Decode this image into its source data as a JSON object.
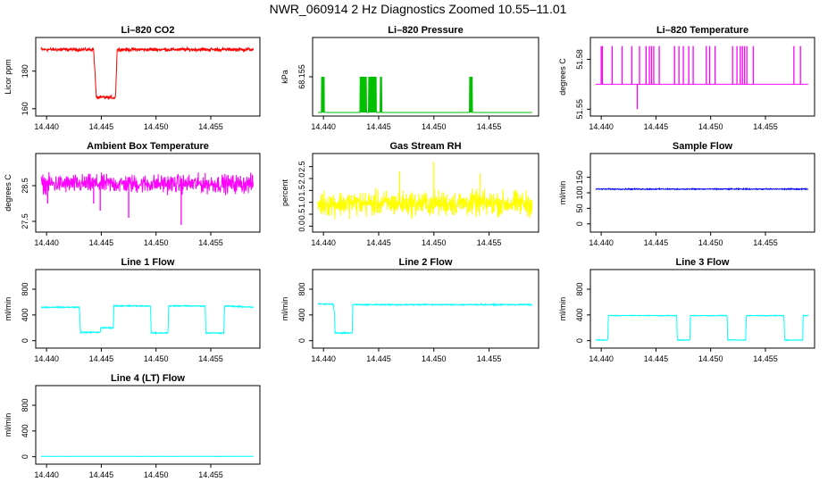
{
  "figure_title": "NWR_060914  2 Hz Diagnostics Zoomed 10.55–11.01",
  "x_axis": {
    "min": 14.4395,
    "max": 14.459,
    "ticks": [
      14.44,
      14.445,
      14.45,
      14.455
    ],
    "tick_labels": [
      "14.440",
      "14.445",
      "14.450",
      "14.455"
    ]
  },
  "chart_data": [
    {
      "type": "line",
      "title": "Li–820 CO2",
      "ylabel": "Licor ppm",
      "color": "#ff0000",
      "ylim": [
        158,
        196
      ],
      "yticks": [
        160,
        180
      ],
      "ytick_labels": [
        "160",
        "180"
      ],
      "series": [
        {
          "name": "CO2",
          "signal": "co2",
          "segments": [
            [
              14.4395,
              191.5
            ],
            [
              14.4443,
              191.5
            ],
            [
              14.44455,
              166
            ],
            [
              14.4463,
              166
            ],
            [
              14.44645,
              191.5
            ],
            [
              14.4589,
              191.5
            ]
          ],
          "noise": 0.8
        }
      ]
    },
    {
      "type": "line",
      "title": "Li–820 Pressure",
      "ylabel": "kPa",
      "color": "#00c000",
      "ylim": [
        68.1585,
        68.1515
      ],
      "yticks": [
        68.165,
        68.16,
        68.155
      ],
      "ytick_labels": [
        "68.165",
        "68.160",
        "68.155"
      ],
      "series": [
        {
          "name": "Pressure",
          "signal": "steps",
          "base": 68.16,
          "levels": [
            68.155,
            68.16,
            68.165
          ],
          "bursts": [
            [
              14.4398,
              14.4401,
              68.155
            ],
            [
              14.4433,
              14.4439,
              68.155
            ],
            [
              14.4441,
              14.4448,
              68.155
            ],
            [
              14.4451,
              14.4453,
              68.155
            ],
            [
              14.4535,
              14.4544,
              68.165
            ],
            [
              14.4568,
              14.4578,
              68.165
            ],
            [
              14.4581,
              14.4586,
              68.165
            ]
          ],
          "shift": [
            [
              14.4532,
              14.4581,
              68.16
            ],
            [
              14.4581,
              14.4589,
              68.165
            ]
          ]
        }
      ]
    },
    {
      "type": "line",
      "title": "Li–820 Temperature",
      "ylabel": "degrees C",
      "color": "#ff00ff",
      "ylim": [
        51.548,
        51.591
      ],
      "yticks": [
        51.55,
        51.58
      ],
      "ytick_labels": [
        "51.55",
        "51.58"
      ],
      "series": [
        {
          "name": "Temperature",
          "signal": "spikes",
          "base": 51.565,
          "up": 51.588,
          "down": 51.55,
          "spike_x": [
            14.44,
            14.4401,
            14.441,
            14.4419,
            14.4428,
            14.4435,
            14.4441,
            14.4444,
            14.4446,
            14.4448,
            14.4453,
            14.4467,
            14.4471,
            14.4475,
            14.448,
            14.4484,
            14.4496,
            14.4499,
            14.4504,
            14.452,
            14.4524,
            14.4527,
            14.4529,
            14.4531,
            14.4533,
            14.4539,
            14.4576,
            14.4582
          ],
          "down_x": [
            14.4433
          ]
        }
      ]
    },
    {
      "type": "line",
      "title": "Ambient Box Temperature",
      "ylabel": "degrees C",
      "color": "#ff00ff",
      "ylim": [
        27.3,
        29.3
      ],
      "yticks": [
        27.5,
        28.5
      ],
      "ytick_labels": [
        "27.5",
        "28.5"
      ],
      "series": [
        {
          "name": "Ambient",
          "signal": "noise",
          "base": 28.55,
          "noise": 0.22,
          "dips": [
            [
              14.4475,
              27.6
            ],
            [
              14.4449,
              27.8
            ],
            [
              14.4523,
              27.4
            ],
            [
              14.4443,
              28.0
            ],
            [
              14.4401,
              28.0
            ]
          ]
        }
      ]
    },
    {
      "type": "line",
      "title": "Gas Stream RH",
      "ylabel": "percent",
      "color": "#ffff00",
      "ylim": [
        -0.1,
        2.9
      ],
      "yticks": [
        0.0,
        0.5,
        1.0,
        1.5,
        2.0,
        2.5
      ],
      "ytick_labels": [
        "0.0",
        "0.5",
        "1.0",
        "1.5",
        "2.0",
        "2.5"
      ],
      "series": [
        {
          "name": "RH",
          "signal": "noise",
          "base": 0.95,
          "noise": 0.45,
          "dips": [
            [
              14.45,
              2.7
            ],
            [
              14.4542,
              2.2
            ],
            [
              14.4469,
              2.3
            ]
          ]
        }
      ]
    },
    {
      "type": "line",
      "title": "Sample Flow",
      "ylabel": "ml/min",
      "color": "#0000ff",
      "ylim": [
        -15,
        215
      ],
      "yticks": [
        0,
        50,
        100,
        150
      ],
      "ytick_labels": [
        "0",
        "50",
        "100",
        "150"
      ],
      "series": [
        {
          "name": "Sample",
          "signal": "noise",
          "base": 112,
          "noise": 1.5,
          "dips": []
        }
      ]
    },
    {
      "type": "line",
      "title": "Line 1 Flow",
      "ylabel": "ml/min",
      "color": "#00ffff",
      "ylim": [
        -60,
        1050
      ],
      "yticks": [
        0,
        400,
        800
      ],
      "ytick_labels": [
        "0",
        "400",
        "800"
      ],
      "series": [
        {
          "name": "Line1",
          "signal": "steps2",
          "segments": [
            [
              14.4395,
              520
            ],
            [
              14.443,
              520
            ],
            [
              14.4431,
              130
            ],
            [
              14.4449,
              130
            ],
            [
              14.44495,
              200
            ],
            [
              14.4462,
              200
            ],
            [
              14.44625,
              540
            ],
            [
              14.4496,
              540
            ],
            [
              14.44965,
              120
            ],
            [
              14.4512,
              120
            ],
            [
              14.44125,
              120
            ],
            [
              14.44125,
              120
            ]
          ],
          "points": [
            [
              14.4395,
              520
            ],
            [
              14.443,
              520
            ],
            [
              14.4431,
              130
            ],
            [
              14.4449,
              130
            ],
            [
              14.44495,
              200
            ],
            [
              14.4461,
              200
            ],
            [
              14.44615,
              540
            ],
            [
              14.4495,
              540
            ],
            [
              14.44955,
              120
            ],
            [
              14.4511,
              120
            ],
            [
              14.45115,
              540
            ],
            [
              14.4545,
              540
            ],
            [
              14.45455,
              120
            ],
            [
              14.4562,
              120
            ],
            [
              14.45625,
              540
            ],
            [
              14.4589,
              520
            ]
          ],
          "noise": 8
        }
      ]
    },
    {
      "type": "line",
      "title": "Line 2 Flow",
      "ylabel": "ml/min",
      "color": "#00ffff",
      "ylim": [
        -60,
        1050
      ],
      "yticks": [
        0,
        400,
        800
      ],
      "ytick_labels": [
        "0",
        "400",
        "800"
      ],
      "series": [
        {
          "name": "Line2",
          "signal": "steps2",
          "points": [
            [
              14.4395,
              570
            ],
            [
              14.4409,
              570
            ],
            [
              14.441,
              400
            ],
            [
              14.44105,
              120
            ],
            [
              14.4426,
              120
            ],
            [
              14.44265,
              560
            ],
            [
              14.4474,
              560
            ],
            [
              14.47745,
              560
            ],
            [
              14.4475,
              120
            ],
            [
              14.4492,
              120
            ],
            [
              14.44925,
              560
            ],
            [
              14.4529,
              560
            ],
            [
              14.45295,
              120
            ],
            [
              14.4546,
              120
            ],
            [
              14.45465,
              570
            ],
            [
              14.4585,
              570
            ],
            [
              14.45855,
              120
            ],
            [
              14.4589,
              120
            ]
          ],
          "noise": 8
        }
      ]
    },
    {
      "type": "line",
      "title": "Line 3 Flow",
      "ylabel": "ml/min",
      "color": "#00ffff",
      "ylim": [
        -60,
        1050
      ],
      "yticks": [
        0,
        400,
        800
      ],
      "ytick_labels": [
        "0",
        "400",
        "800"
      ],
      "series": [
        {
          "name": "Line3",
          "signal": "steps2",
          "points": [
            [
              14.4395,
              10
            ],
            [
              14.4406,
              10
            ],
            [
              14.44065,
              390
            ],
            [
              14.4469,
              390
            ],
            [
              14.44695,
              10
            ],
            [
              14.4481,
              10
            ],
            [
              14.44815,
              390
            ],
            [
              14.4515,
              390
            ],
            [
              14.45155,
              10
            ],
            [
              14.4532,
              10
            ],
            [
              14.45325,
              390
            ],
            [
              14.4567,
              390
            ],
            [
              14.45675,
              10
            ],
            [
              14.4584,
              10
            ],
            [
              14.45845,
              390
            ],
            [
              14.4589,
              390
            ]
          ],
          "noise": 5
        }
      ]
    },
    {
      "type": "line",
      "title": "Line 4 (LT) Flow",
      "ylabel": "ml/min",
      "color": "#00ffff",
      "ylim": [
        -60,
        1050
      ],
      "yticks": [
        0,
        400,
        800
      ],
      "ytick_labels": [
        "0",
        "400",
        "800"
      ],
      "series": [
        {
          "name": "Line4",
          "signal": "noise",
          "base": 5,
          "noise": 1.5,
          "dips": []
        }
      ]
    }
  ]
}
